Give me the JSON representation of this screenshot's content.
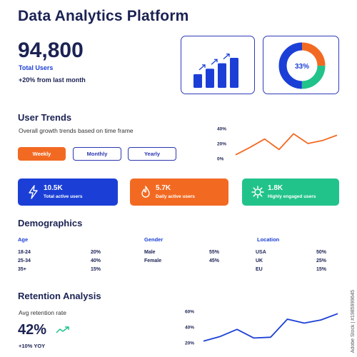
{
  "header": {
    "title": "Data Analytics Platform"
  },
  "kpi": {
    "value": "94,800",
    "label": "Total Users",
    "change": "+20% from last month"
  },
  "donut": {
    "percent_label": "33%",
    "segments": [
      {
        "name": "orange",
        "fraction": 0.25,
        "color": "#f26a22"
      },
      {
        "name": "green",
        "fraction": 0.25,
        "color": "#21c38a"
      },
      {
        "name": "blue",
        "fraction": 0.5,
        "color": "#1b3fd6"
      }
    ]
  },
  "bars_card": {
    "values": [
      1,
      1.4,
      1.8,
      2.2
    ]
  },
  "trends": {
    "title": "User Trends",
    "subtitle": "Overall growth trends based on time frame",
    "tabs": [
      {
        "label": "Weekly",
        "active": true
      },
      {
        "label": "Monthly",
        "active": false
      },
      {
        "label": "Yearly",
        "active": false
      }
    ]
  },
  "trend_chart": {
    "type": "line",
    "yticks": [
      "40%",
      "20%",
      "0%"
    ],
    "ylim": [
      0,
      40
    ],
    "values": [
      5,
      15,
      26,
      12,
      33,
      20,
      24,
      31
    ],
    "color": "#f26a22"
  },
  "stats": [
    {
      "value": "10.5K",
      "desc": "Total active users",
      "icon": "lightning-icon",
      "color": "#1b3fd6"
    },
    {
      "value": "5.7K",
      "desc": "Daily active users",
      "icon": "flame-icon",
      "color": "#f26a22"
    },
    {
      "value": "1.8K",
      "desc": "Highly engaged users",
      "icon": "gear-icon",
      "color": "#21c38a"
    }
  ],
  "demographics": {
    "title": "Demographics",
    "age": {
      "heading": "Age",
      "rows": [
        [
          "18-24",
          "20%"
        ],
        [
          "25-34",
          "40%"
        ],
        [
          "35+",
          "15%"
        ]
      ]
    },
    "gender": {
      "heading": "Gender",
      "rows": [
        [
          "Male",
          "55%"
        ],
        [
          "Female",
          "45%"
        ]
      ]
    },
    "location": {
      "heading": "Location",
      "rows": [
        [
          "USA",
          "50%"
        ],
        [
          "UK",
          "25%"
        ],
        [
          "EU",
          "15%"
        ]
      ]
    }
  },
  "retention": {
    "title": "Retention Analysis",
    "subtitle": "Avg retention rate",
    "value": "42%",
    "yoy": "+10% YOY"
  },
  "retention_chart": {
    "type": "line",
    "yticks": [
      "60%",
      "40%",
      "20%"
    ],
    "ylim": [
      20,
      60
    ],
    "values": [
      22,
      28,
      37,
      26,
      27,
      50,
      45,
      49,
      57
    ],
    "color": "#1b3fd6"
  },
  "watermark": "Adobe Stock | #1985999645"
}
